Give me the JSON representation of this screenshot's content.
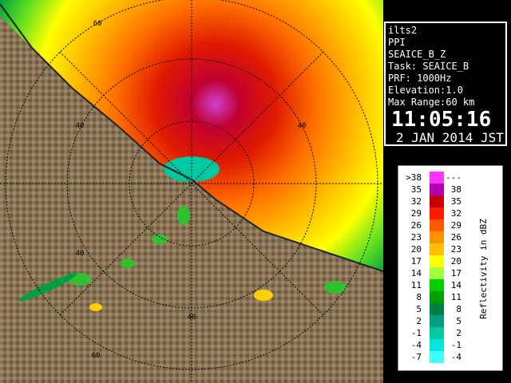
{
  "info": {
    "lines": [
      "ilts2",
      "PPI",
      "SEAICE_B_Z",
      "Task: SEAICE_B",
      "PRF: 1000Hz",
      "Elevation:1.0",
      "Max Range:60 km"
    ],
    "time": "11:05:16",
    "date": "2 JAN 2014 JST"
  },
  "legend": {
    "title": "Reflectivity in dBZ",
    "rows": [
      {
        "low": ">38",
        "high": "---",
        "color": "#ff33ff"
      },
      {
        "low": "35",
        "high": "38",
        "color": "#b000b0"
      },
      {
        "low": "32",
        "high": "35",
        "color": "#c80000"
      },
      {
        "low": "29",
        "high": "32",
        "color": "#ff1a00"
      },
      {
        "low": "26",
        "high": "29",
        "color": "#ff5a00"
      },
      {
        "low": "23",
        "high": "26",
        "color": "#ff9000"
      },
      {
        "low": "20",
        "high": "23",
        "color": "#ffc000"
      },
      {
        "low": "17",
        "high": "20",
        "color": "#ffff00"
      },
      {
        "low": "14",
        "high": "17",
        "color": "#a0ff40"
      },
      {
        "low": "11",
        "high": "14",
        "color": "#00d000"
      },
      {
        "low": "8",
        "high": "11",
        "color": "#00a000"
      },
      {
        "low": "5",
        "high": "8",
        "color": "#008040"
      },
      {
        "low": "2",
        "high": "5",
        "color": "#00a080"
      },
      {
        "low": "-1",
        "high": "2",
        "color": "#00c8a0"
      },
      {
        "low": "-4",
        "high": "-1",
        "color": "#00e8d8"
      },
      {
        "low": "-7",
        "high": "-4",
        "color": "#40ffff"
      }
    ]
  },
  "map": {
    "ring_labels": [
      "60",
      "40",
      "40",
      "40",
      "40",
      "60"
    ]
  }
}
